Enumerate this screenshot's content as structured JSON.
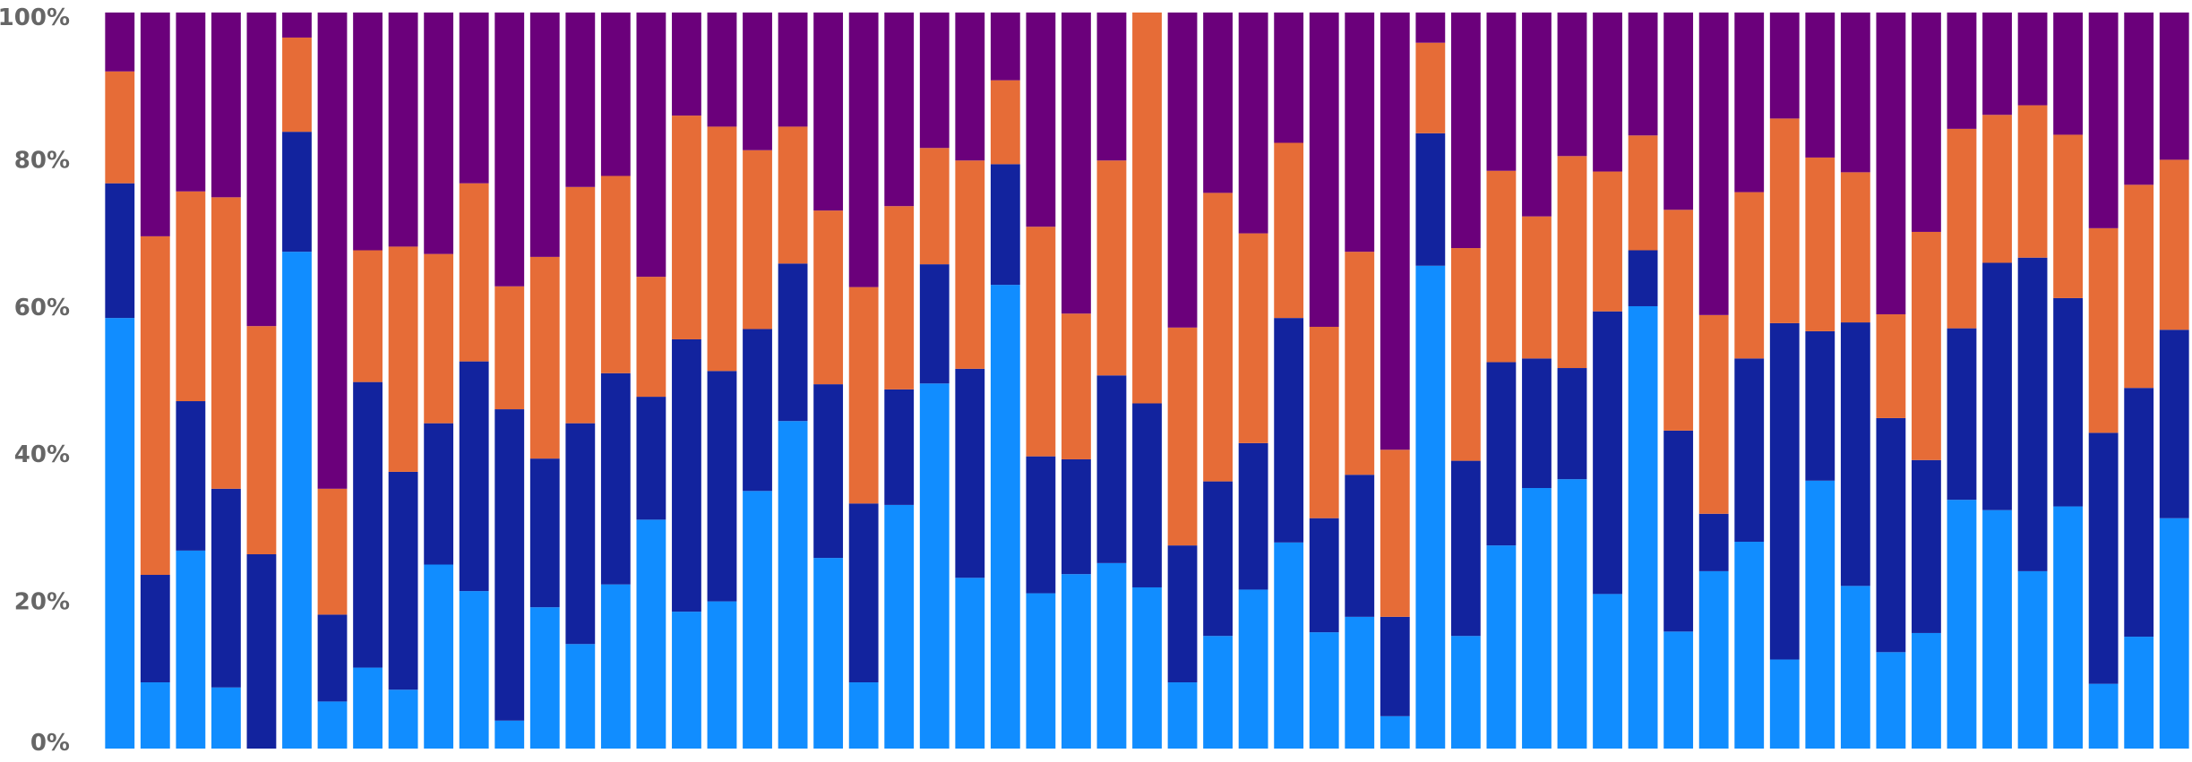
{
  "chart_data": {
    "type": "bar",
    "stacked": "percent",
    "title": "",
    "xlabel": "",
    "ylabel": "",
    "ylim": [
      0,
      100
    ],
    "y_ticks": [
      "0%",
      "20%",
      "40%",
      "60%",
      "80%",
      "100%"
    ],
    "grid": false,
    "legend": "none",
    "n_bars": 59,
    "colors": [
      "#118DFF",
      "#12239E",
      "#E66C37",
      "#6B007B"
    ],
    "series": [
      {
        "values": [
          58.5,
          9,
          26.9,
          8.3,
          0,
          67.5,
          6.4,
          11,
          8,
          25,
          21.4,
          3.8,
          19.2,
          14.2,
          22.3,
          31.1,
          18.6,
          20,
          35,
          44.5,
          25.9,
          9,
          33.1,
          49.6,
          23.2,
          63,
          21.1,
          23.7,
          25.2,
          21.9,
          9,
          15.3,
          21.6,
          28,
          15.8,
          17.9,
          4.4,
          65.6,
          15.3,
          27.6,
          35.4,
          36.6,
          21,
          60.1,
          15.9,
          24.1,
          28.1,
          12.1,
          36.4,
          22.1,
          13.1,
          15.7,
          33.8,
          32.4,
          24.1,
          32.9,
          8.8,
          15.2,
          31.3
        ]
      },
      {
        "values": [
          18.3,
          14.6,
          20.3,
          27,
          26.4,
          16.3,
          11.8,
          38.8,
          29.6,
          19.2,
          31.2,
          42.3,
          20.2,
          30,
          28.7,
          16.7,
          37,
          31.3,
          22,
          21.4,
          23.6,
          24.3,
          15.7,
          16.2,
          28.4,
          16.4,
          18.6,
          15.6,
          25.5,
          25,
          18.6,
          21,
          19.9,
          30.5,
          15.5,
          19.3,
          13.5,
          18,
          23.8,
          24.9,
          17.6,
          15.1,
          38.4,
          7.6,
          27.3,
          7.8,
          24.9,
          45.7,
          20.3,
          35.8,
          31.8,
          23.5,
          23.3,
          33.6,
          42.6,
          28.3,
          34.1,
          33.8,
          25.6
        ]
      },
      {
        "values": [
          15.2,
          46,
          28.5,
          39.6,
          31,
          12.8,
          17.1,
          17.9,
          30.6,
          23,
          24.2,
          16.7,
          27.4,
          32.1,
          26.8,
          16.3,
          30.4,
          33.2,
          24.3,
          18.6,
          23.6,
          29.4,
          24.9,
          15.8,
          28.3,
          11.4,
          31.2,
          19.8,
          29.2,
          53.1,
          29.6,
          39.2,
          28.5,
          23.8,
          26,
          30.3,
          22.7,
          12.3,
          28.9,
          26,
          19.3,
          28.8,
          19,
          15.6,
          30,
          27,
          22.6,
          27.8,
          23.6,
          20.4,
          14.1,
          31,
          27.1,
          20.1,
          20.7,
          22.2,
          27.8,
          27.6,
          23.1
        ]
      },
      {
        "values": [
          8,
          30.4,
          24.3,
          25.1,
          42.6,
          3.4,
          64.7,
          32.3,
          31.8,
          32.8,
          23.2,
          37.2,
          33.2,
          23.7,
          22.2,
          35.9,
          14,
          15.5,
          18.7,
          15.5,
          26.9,
          37.3,
          26.3,
          18.4,
          20.1,
          9.2,
          29.1,
          40.9,
          20.1,
          0,
          42.8,
          24.5,
          30,
          17.7,
          42.7,
          32.5,
          59.4,
          4.1,
          32,
          21.5,
          27.7,
          19.5,
          21.6,
          16.7,
          26.8,
          41.1,
          24.4,
          14.4,
          19.7,
          21.7,
          41,
          29.8,
          15.8,
          13.9,
          12.6,
          16.6,
          29.3,
          23.4,
          20
        ]
      }
    ]
  }
}
